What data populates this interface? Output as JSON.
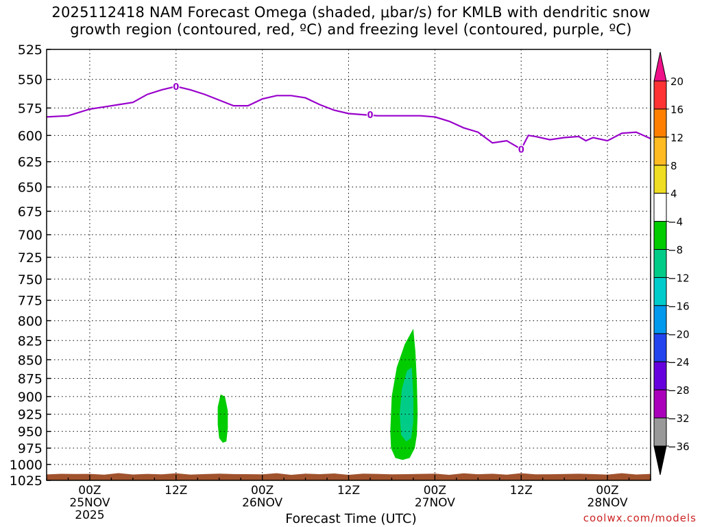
{
  "title": {
    "line1": "2025112418 NAM Forecast Omega (shaded, μbar/s) for KMLB with dendritic snow",
    "line2": "growth region (contoured, red, ºC) and freezing level (contoured, purple, ºC)"
  },
  "credit": "coolwx.com/models",
  "chart_data": {
    "type": "heatmap",
    "title": "2025112418 NAM Forecast Omega (shaded, μbar/s) for KMLB with dendritic snow growth region (contoured, red, ºC) and freezing level (contoured, purple, ºC)",
    "xlabel": "Forecast Time (UTC)",
    "ylabel": "",
    "x_unit": "forecast hour from 2025112418",
    "xlim": [
      0,
      84
    ],
    "ylim": [
      1025,
      525
    ],
    "y_ticks": [
      525,
      550,
      575,
      600,
      625,
      650,
      675,
      700,
      725,
      750,
      775,
      800,
      825,
      850,
      875,
      900,
      925,
      950,
      975,
      1000,
      1025
    ],
    "x_ticks": [
      {
        "hour": 6,
        "label": "00Z",
        "date": "25NOV",
        "year": "2025"
      },
      {
        "hour": 18,
        "label": "12Z",
        "date": "",
        "year": ""
      },
      {
        "hour": 30,
        "label": "00Z",
        "date": "26NOV",
        "year": ""
      },
      {
        "hour": 42,
        "label": "12Z",
        "date": "",
        "year": ""
      },
      {
        "hour": 54,
        "label": "00Z",
        "date": "27NOV",
        "year": ""
      },
      {
        "hour": 66,
        "label": "12Z",
        "date": "",
        "year": ""
      },
      {
        "hour": 78,
        "label": "00Z",
        "date": "28NOV",
        "year": ""
      }
    ],
    "grid": true,
    "freezing_level": {
      "contour_label": "0",
      "color": "#9900cc",
      "points": [
        [
          0,
          583
        ],
        [
          3,
          582
        ],
        [
          6,
          576
        ],
        [
          8,
          574
        ],
        [
          10,
          572
        ],
        [
          12,
          570
        ],
        [
          14,
          563
        ],
        [
          16,
          559
        ],
        [
          18,
          556
        ],
        [
          20,
          559
        ],
        [
          22,
          563
        ],
        [
          24,
          568
        ],
        [
          26,
          573
        ],
        [
          28,
          573
        ],
        [
          30,
          567
        ],
        [
          32,
          564
        ],
        [
          34,
          564
        ],
        [
          36,
          566
        ],
        [
          38,
          572
        ],
        [
          40,
          577
        ],
        [
          42,
          580
        ],
        [
          44,
          581
        ],
        [
          46,
          582
        ],
        [
          48,
          582
        ],
        [
          50,
          582
        ],
        [
          52,
          582
        ],
        [
          54,
          583
        ],
        [
          56,
          587
        ],
        [
          58,
          593
        ],
        [
          60,
          597
        ],
        [
          62,
          607
        ],
        [
          64,
          605
        ],
        [
          66,
          613
        ],
        [
          67,
          600
        ],
        [
          68,
          601
        ],
        [
          70,
          604
        ],
        [
          72,
          602
        ],
        [
          74,
          601
        ],
        [
          75,
          605
        ],
        [
          76,
          602
        ],
        [
          78,
          605
        ],
        [
          80,
          598
        ],
        [
          82,
          597
        ],
        [
          84,
          603
        ]
      ],
      "label_points": [
        [
          18,
          556
        ],
        [
          45,
          581
        ],
        [
          66,
          613
        ]
      ]
    },
    "surface_terrain": {
      "pressure": 1015,
      "color": "#a0522d"
    },
    "omega_regions": [
      {
        "name": "",
        "level_min": -8,
        "level_max": -4,
        "color": "#00cc00",
        "points": [
          [
            24.2,
            897
          ],
          [
            24.8,
            900
          ],
          [
            25.2,
            920
          ],
          [
            25.2,
            945
          ],
          [
            25.0,
            965
          ],
          [
            24.5,
            967
          ],
          [
            24.0,
            960
          ],
          [
            23.8,
            940
          ],
          [
            23.8,
            915
          ]
        ]
      },
      {
        "name": "",
        "level_min": -8,
        "level_max": -4,
        "color": "#00cc00",
        "points": [
          [
            51.0,
            810
          ],
          [
            51.3,
            840
          ],
          [
            51.5,
            880
          ],
          [
            51.6,
            925
          ],
          [
            51.5,
            955
          ],
          [
            51.2,
            975
          ],
          [
            50.5,
            990
          ],
          [
            49.5,
            993
          ],
          [
            48.5,
            990
          ],
          [
            47.9,
            975
          ],
          [
            47.8,
            950
          ],
          [
            48.0,
            900
          ],
          [
            48.7,
            860
          ],
          [
            49.8,
            830
          ]
        ]
      },
      {
        "name": "",
        "level_min": -12,
        "level_max": -8,
        "color": "#00cc88",
        "points": [
          [
            50.8,
            860
          ],
          [
            51.0,
            900
          ],
          [
            51.0,
            935
          ],
          [
            50.7,
            960
          ],
          [
            50.0,
            965
          ],
          [
            49.3,
            955
          ],
          [
            49.1,
            925
          ],
          [
            49.4,
            890
          ],
          [
            50.1,
            865
          ]
        ]
      }
    ],
    "colorbar": {
      "levels": [
        "20",
        "16",
        "12",
        "8",
        "4",
        "-4",
        "-8",
        "-12",
        "-16",
        "-20",
        "-24",
        "-28",
        "-32",
        "-36"
      ],
      "bins": [
        {
          "color": "#ff3333",
          "lo": 16,
          "hi": 20
        },
        {
          "color": "#ff8000",
          "lo": 12,
          "hi": 16
        },
        {
          "color": "#ffbb22",
          "lo": 8,
          "hi": 12
        },
        {
          "color": "#eedd22",
          "lo": 4,
          "hi": 8
        },
        {
          "color": "#ffffff",
          "lo": -4,
          "hi": 4
        },
        {
          "color": "#00cc00",
          "lo": -8,
          "hi": -4
        },
        {
          "color": "#00cc88",
          "lo": -12,
          "hi": -8
        },
        {
          "color": "#00cccc",
          "lo": -16,
          "hi": -12
        },
        {
          "color": "#0099ee",
          "lo": -20,
          "hi": -16
        },
        {
          "color": "#2244ee",
          "lo": -24,
          "hi": -20
        },
        {
          "color": "#6600dd",
          "lo": -28,
          "hi": -24
        },
        {
          "color": "#aa00bb",
          "lo": -32,
          "hi": -28
        },
        {
          "color": "#999999",
          "lo": -36,
          "hi": -32
        }
      ],
      "top_color": "#ee1188",
      "bottom_color": "#000000"
    }
  }
}
